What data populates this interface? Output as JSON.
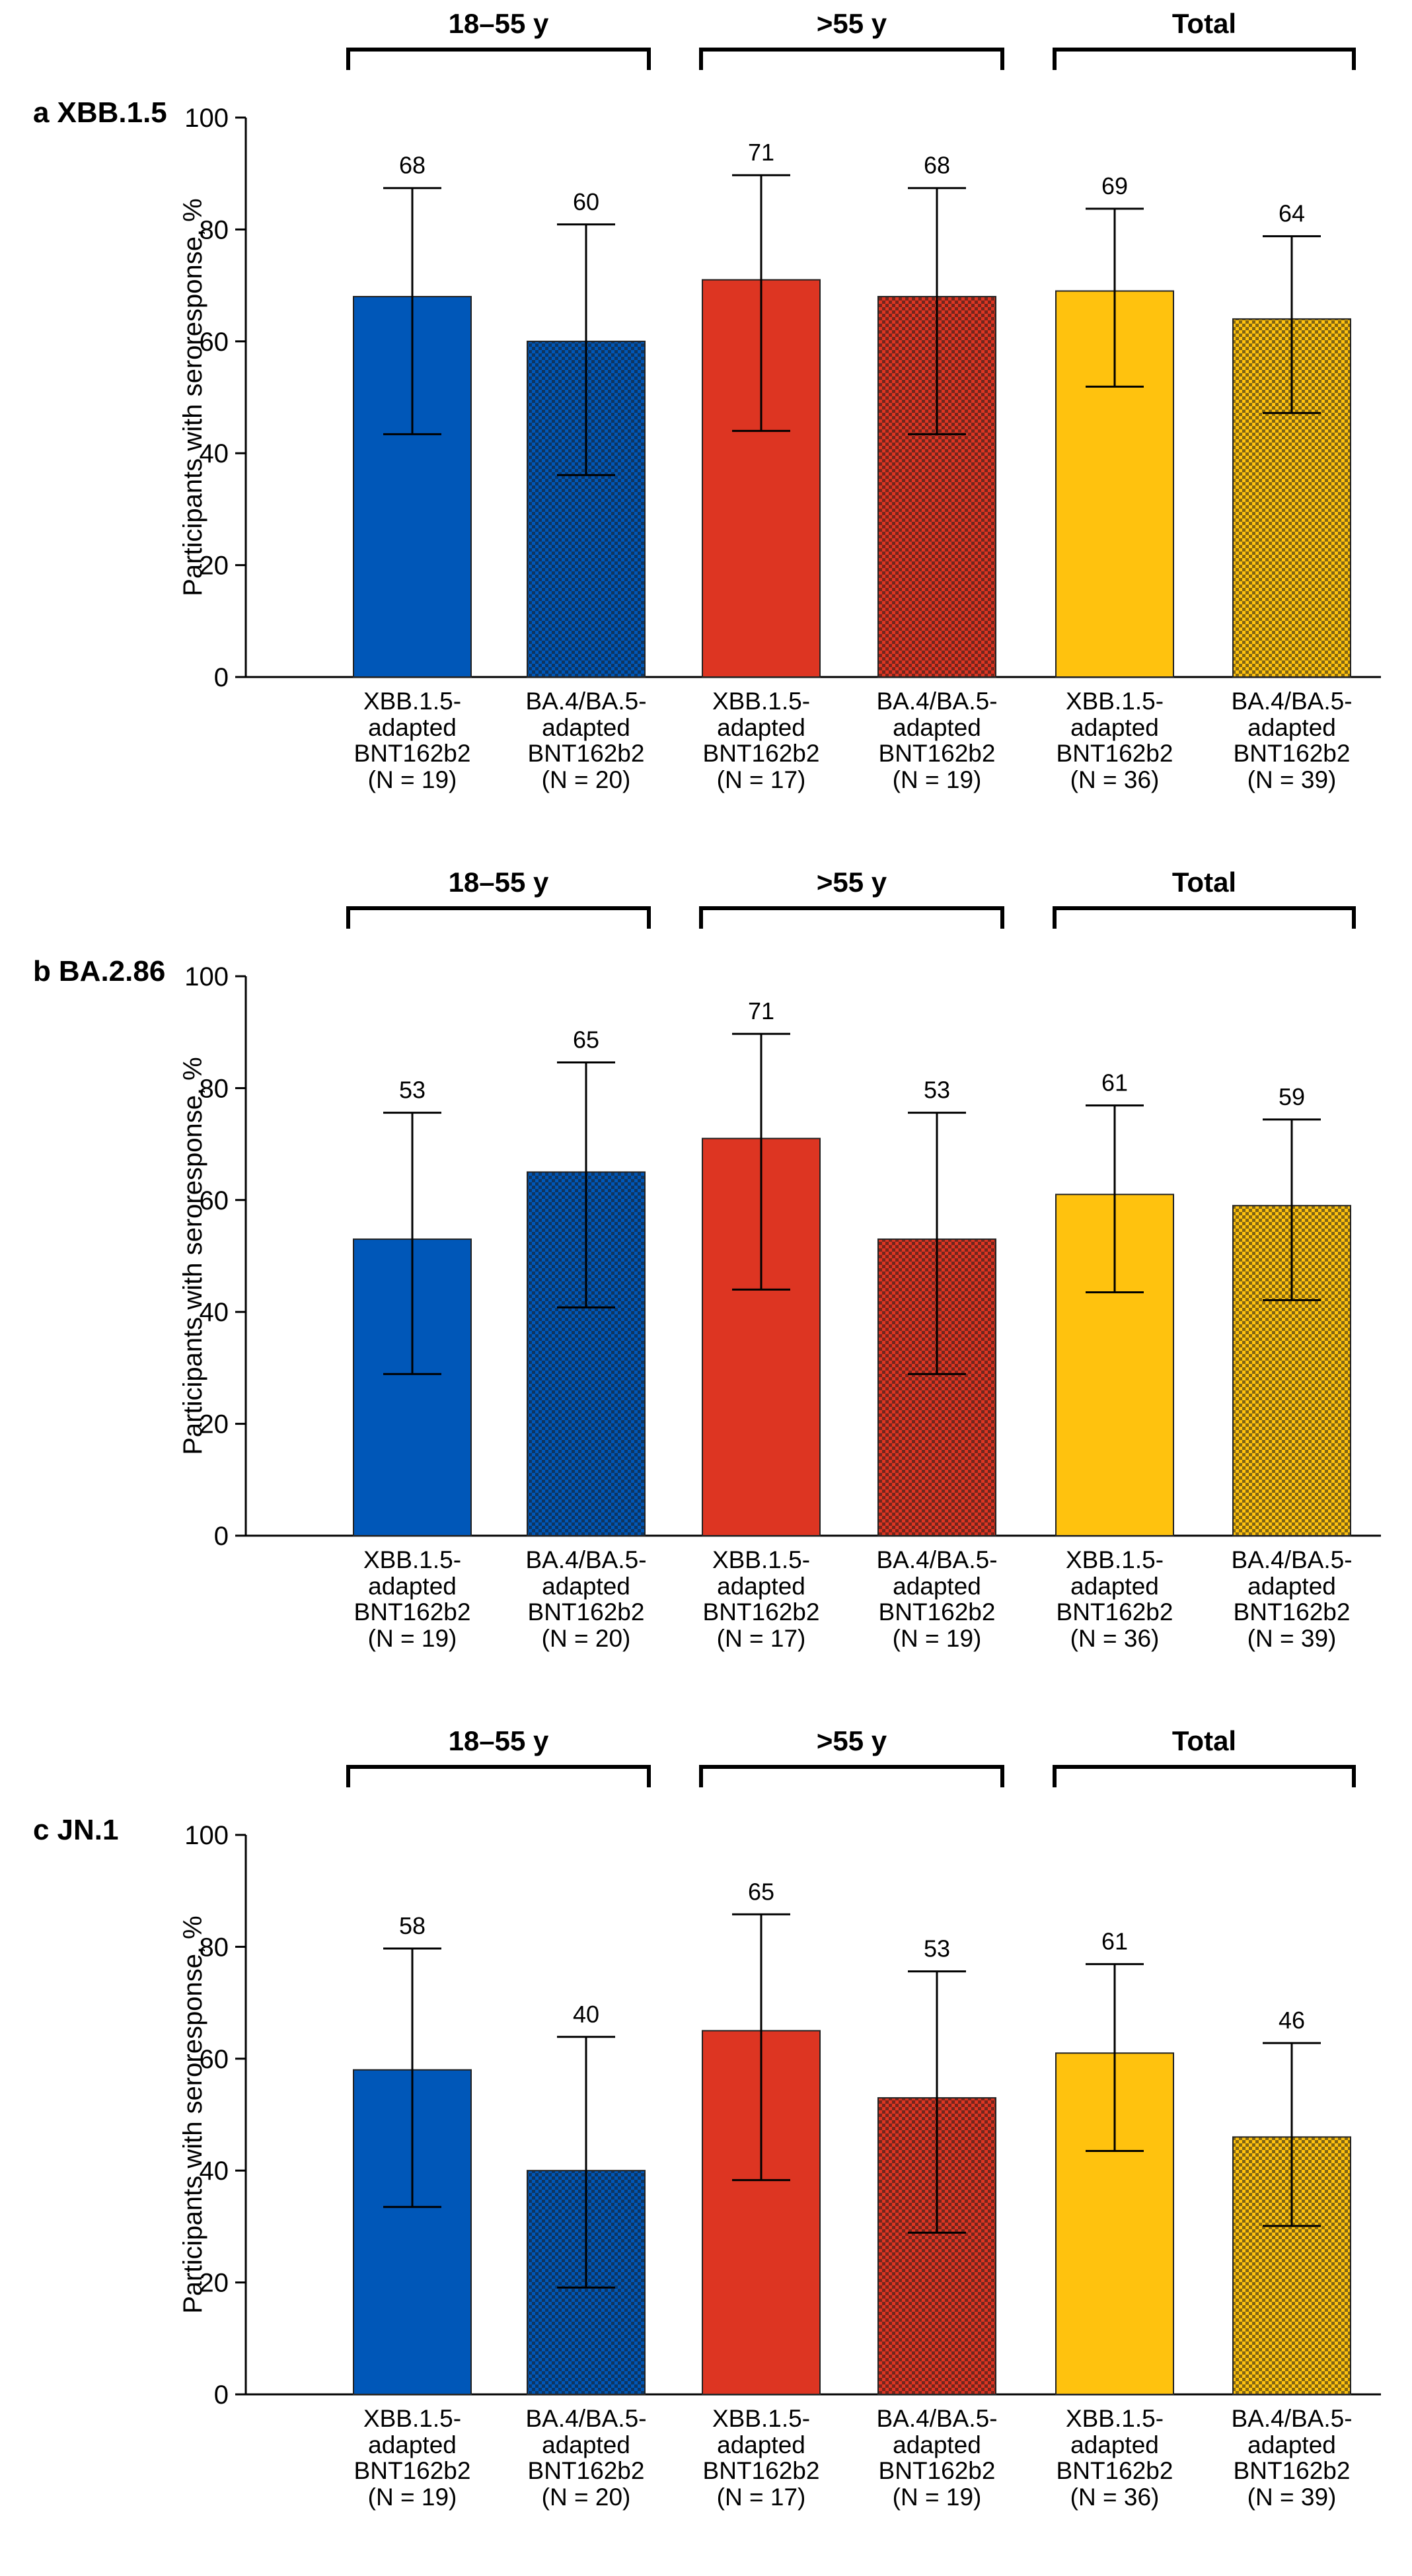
{
  "chart_data": [
    {
      "type": "bar",
      "panel_letter": "a",
      "title": "XBB.1.5",
      "ylabel": "Participants with seroresponse, %",
      "ylim": [
        0,
        100
      ],
      "yticks": [
        "0",
        "20",
        "40",
        "60",
        "80",
        "100"
      ],
      "groups": [
        "18–55 y",
        ">55 y",
        "Total"
      ],
      "categories": [
        {
          "line1": "XBB.1.5-",
          "line2": "adapted",
          "line3": "BNT162b2",
          "n": "(N = 19)"
        },
        {
          "line1": "BA.4/BA.5-",
          "line2": "adapted",
          "line3": "BNT162b2",
          "n": "(N = 20)"
        },
        {
          "line1": "XBB.1.5-",
          "line2": "adapted",
          "line3": "BNT162b2",
          "n": "(N = 17)"
        },
        {
          "line1": "BA.4/BA.5-",
          "line2": "adapted",
          "line3": "BNT162b2",
          "n": "(N = 19)"
        },
        {
          "line1": "XBB.1.5-",
          "line2": "adapted",
          "line3": "BNT162b2",
          "n": "(N = 36)"
        },
        {
          "line1": "BA.4/BA.5-",
          "line2": "adapted",
          "line3": "BNT162b2",
          "n": "(N = 39)"
        }
      ],
      "values": [
        68,
        60,
        71,
        68,
        69,
        64
      ],
      "labels": [
        "68",
        "60",
        "71",
        "68",
        "69",
        "64"
      ],
      "ci_lower": [
        43.4,
        36.1,
        44.0,
        43.4,
        51.9,
        47.2
      ],
      "ci_upper": [
        87.4,
        80.9,
        89.7,
        87.4,
        83.7,
        78.8
      ]
    },
    {
      "type": "bar",
      "panel_letter": "b",
      "title": "BA.2.86",
      "ylabel": "Participants with seroresponse, %",
      "ylim": [
        0,
        100
      ],
      "yticks": [
        "0",
        "20",
        "40",
        "60",
        "80",
        "100"
      ],
      "groups": [
        "18–55 y",
        ">55 y",
        "Total"
      ],
      "categories": [
        {
          "line1": "XBB.1.5-",
          "line2": "adapted",
          "line3": "BNT162b2",
          "n": "(N = 19)"
        },
        {
          "line1": "BA.4/BA.5-",
          "line2": "adapted",
          "line3": "BNT162b2",
          "n": "(N = 20)"
        },
        {
          "line1": "XBB.1.5-",
          "line2": "adapted",
          "line3": "BNT162b2",
          "n": "(N = 17)"
        },
        {
          "line1": "BA.4/BA.5-",
          "line2": "adapted",
          "line3": "BNT162b2",
          "n": "(N = 19)"
        },
        {
          "line1": "XBB.1.5-",
          "line2": "adapted",
          "line3": "BNT162b2",
          "n": "(N = 36)"
        },
        {
          "line1": "BA.4/BA.5-",
          "line2": "adapted",
          "line3": "BNT162b2",
          "n": "(N = 39)"
        }
      ],
      "values": [
        53,
        65,
        71,
        53,
        61,
        59
      ],
      "labels": [
        "53",
        "65",
        "71",
        "53",
        "61",
        "59"
      ],
      "ci_lower": [
        28.9,
        40.8,
        44.0,
        28.9,
        43.5,
        42.1
      ],
      "ci_upper": [
        75.6,
        84.6,
        89.7,
        75.6,
        76.9,
        74.4
      ]
    },
    {
      "type": "bar",
      "panel_letter": "c",
      "title": "JN.1",
      "ylabel": "Participants with seroresponse, %",
      "ylim": [
        0,
        100
      ],
      "yticks": [
        "0",
        "20",
        "40",
        "60",
        "80",
        "100"
      ],
      "groups": [
        "18–55 y",
        ">55 y",
        "Total"
      ],
      "categories": [
        {
          "line1": "XBB.1.5-",
          "line2": "adapted",
          "line3": "BNT162b2",
          "n": "(N = 19)"
        },
        {
          "line1": "BA.4/BA.5-",
          "line2": "adapted",
          "line3": "BNT162b2",
          "n": "(N = 20)"
        },
        {
          "line1": "XBB.1.5-",
          "line2": "adapted",
          "line3": "BNT162b2",
          "n": "(N = 17)"
        },
        {
          "line1": "BA.4/BA.5-",
          "line2": "adapted",
          "line3": "BNT162b2",
          "n": "(N = 19)"
        },
        {
          "line1": "XBB.1.5-",
          "line2": "adapted",
          "line3": "BNT162b2",
          "n": "(N = 36)"
        },
        {
          "line1": "BA.4/BA.5-",
          "line2": "adapted",
          "line3": "BNT162b2",
          "n": "(N = 39)"
        }
      ],
      "values": [
        58,
        40,
        65,
        53,
        61,
        46
      ],
      "labels": [
        "58",
        "40",
        "65",
        "53",
        "61",
        "46"
      ],
      "ci_lower": [
        33.5,
        19.1,
        38.3,
        28.9,
        43.5,
        30.1
      ],
      "ci_upper": [
        79.7,
        63.9,
        85.8,
        75.6,
        76.9,
        62.8
      ]
    }
  ],
  "colors": {
    "group1": "#0057b8",
    "group2": "#dd3522",
    "group3": "#ffc20e",
    "hatch": "#1a1a1a",
    "ink": "#000000"
  }
}
